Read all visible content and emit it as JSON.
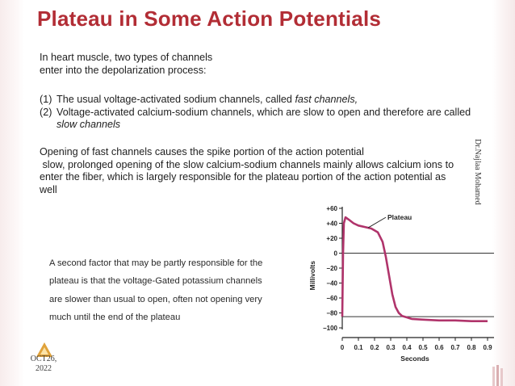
{
  "slide": {
    "title": "Plateau in Some Action Potentials",
    "intro_lines": [
      "In heart muscle, two types of channels",
      "enter into the depolarization process:"
    ],
    "list": [
      {
        "num": "(1)",
        "text_before": "The usual voltage-activated sodium channels, called ",
        "text_italic": "fast channels,",
        "text_after": ""
      },
      {
        "num": "(2)",
        "text_before": "Voltage-activated calcium-sodium channels, which are slow to open and therefore are called ",
        "text_italic": "slow channels",
        "text_after": ""
      }
    ],
    "opening_lines": [
      "Opening of fast channels causes the spike portion of the action potential",
      " slow, prolonged opening of the slow calcium-sodium channels mainly allows calcium ions to",
      "enter the fiber, which is largely responsible for the plateau portion of the action potential as",
      "well"
    ],
    "second_factor_lines": [
      "A second factor that may be partly responsible for the",
      "plateau is that the voltage-Gated potassium channels",
      "are slower than usual to open, often not opening very",
      "much until the end of the plateau"
    ],
    "watermark": "Dr.Najlaa Mohamed",
    "date_lines": [
      "OCT26,",
      "2022"
    ]
  },
  "colors": {
    "title": "#b22d35",
    "trace": "#b0346b",
    "logo": "#e0a23a"
  },
  "chart_data": {
    "type": "line",
    "annotation": "Plateau",
    "xlabel": "Seconds",
    "ylabel": "Millivolts",
    "xlim": [
      0,
      0.9
    ],
    "ylim": [
      -100,
      60
    ],
    "x_ticks": [
      0,
      0.1,
      0.2,
      0.3,
      0.4,
      0.5,
      0.6,
      0.7,
      0.8,
      0.9
    ],
    "x_tick_labels": [
      "0",
      "0.1",
      "0.2",
      "0.3",
      "0.4",
      "0.5",
      "0.6",
      "0.7",
      "0.8",
      "0.9"
    ],
    "y_ticks": [
      60,
      40,
      20,
      0,
      -20,
      -40,
      -60,
      -80,
      -100
    ],
    "y_tick_labels": [
      "+60",
      "+40",
      "+20",
      "0",
      "−20",
      "−40",
      "−60",
      "−80",
      "−100"
    ],
    "reference_lines": [
      0,
      -85
    ],
    "series": [
      {
        "x": [
          0,
          0.005,
          0.01,
          0.02,
          0.04,
          0.07,
          0.1,
          0.14,
          0.18,
          0.22,
          0.25,
          0.27,
          0.29,
          0.31,
          0.33,
          0.35,
          0.37,
          0.4,
          0.43,
          0.5,
          0.6,
          0.7,
          0.8,
          0.9
        ],
        "y": [
          -85,
          0,
          40,
          48,
          45,
          40,
          37,
          35,
          33,
          28,
          15,
          -5,
          -30,
          -55,
          -72,
          -80,
          -84,
          -86,
          -88,
          -89,
          -90,
          -90,
          -91,
          -91
        ]
      }
    ]
  }
}
